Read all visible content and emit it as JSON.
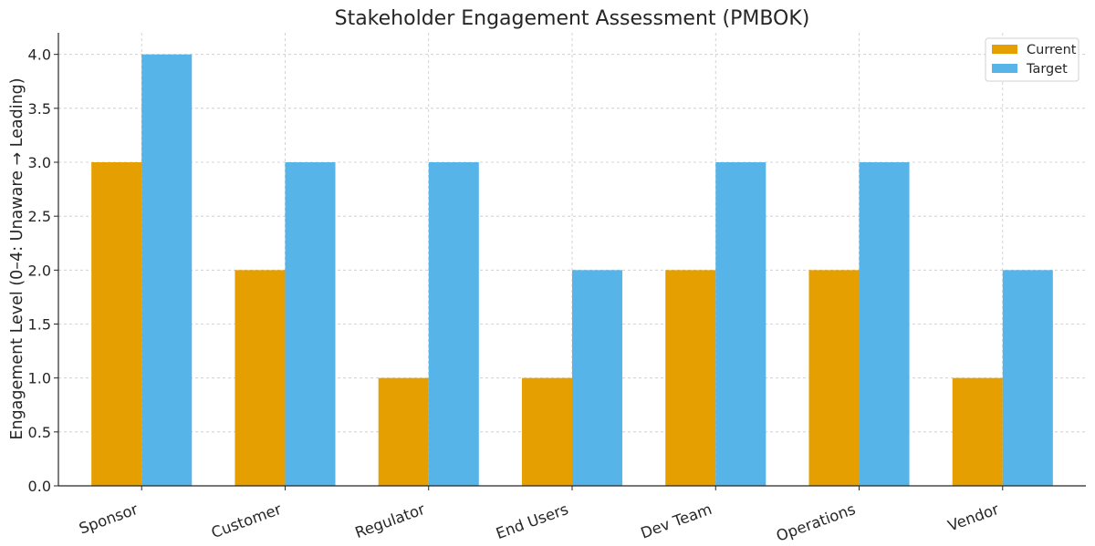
{
  "chart_data": {
    "type": "bar",
    "title": "Stakeholder Engagement Assessment (PMBOK)",
    "xlabel": "",
    "ylabel": "Engagement Level (0–4: Unaware → Leading)",
    "categories": [
      "Sponsor",
      "Customer",
      "Regulator",
      "End Users",
      "Dev Team",
      "Operations",
      "Vendor"
    ],
    "series": [
      {
        "name": "Current",
        "color": "#E69F00",
        "values": [
          3,
          2,
          1,
          1,
          2,
          2,
          1
        ]
      },
      {
        "name": "Target",
        "color": "#56B4E9",
        "values": [
          4,
          3,
          3,
          2,
          3,
          3,
          2
        ]
      }
    ],
    "ylim": [
      0,
      4.2
    ],
    "yticks": [
      "0.0",
      "0.5",
      "1.0",
      "1.5",
      "2.0",
      "2.5",
      "3.0",
      "3.5",
      "4.0"
    ],
    "grid": true,
    "legend_position": "top-right"
  }
}
